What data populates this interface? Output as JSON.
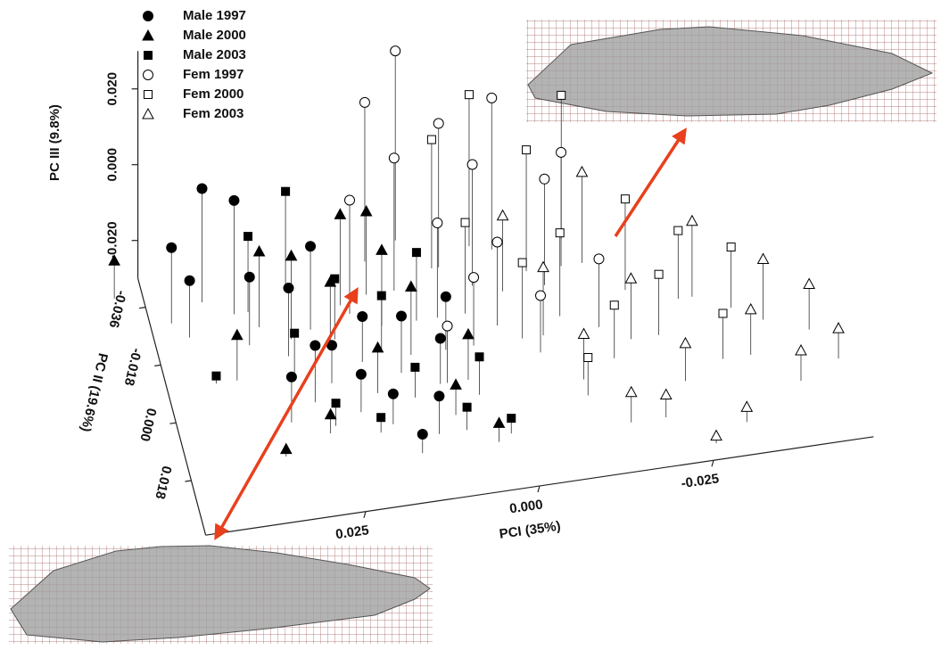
{
  "chart_data": {
    "type": "scatter3d",
    "xlabel": "PCI (35%)",
    "ylabel": "PC II (19.6%)",
    "zlabel": "PC III (9.8%)",
    "xlim": [
      -0.048,
      0.048
    ],
    "ylim": [
      -0.045,
      0.035
    ],
    "zlim": [
      -0.03,
      0.03
    ],
    "xticks": [
      0.025,
      {
        "value": 0,
        "label": "0.000"
      },
      -0.025
    ],
    "yticks": [
      -0.036,
      -0.018,
      {
        "value": 0,
        "label": "0.000"
      },
      0.018
    ],
    "zticks": [
      {
        "value": 0.02,
        "label": "0.020"
      },
      {
        "value": 0,
        "label": "0.000"
      },
      {
        "value": -0.02,
        "label": "-0.020"
      }
    ],
    "series": [
      {
        "name": "Male 1997",
        "marker": "circle",
        "filled": true,
        "color": "#000000",
        "x": [
          0.045,
          0.043,
          0.04,
          0.036,
          0.035,
          0.03,
          0.028,
          0.025,
          0.022,
          0.02,
          0.018,
          0.015,
          0.012,
          0.01,
          0.015,
          0.008,
          0.032,
          0.026
        ],
        "y": [
          -0.03,
          -0.025,
          -0.035,
          -0.03,
          -0.02,
          -0.015,
          0.0,
          -0.005,
          0.005,
          -0.01,
          0.01,
          -0.005,
          0.015,
          0.0,
          0.02,
          -0.01,
          0.005,
          -0.022
        ],
        "z": [
          -0.01,
          -0.015,
          0.0,
          0.0,
          -0.012,
          -0.012,
          -0.015,
          -0.02,
          -0.02,
          -0.018,
          -0.022,
          -0.015,
          -0.02,
          -0.018,
          -0.025,
          -0.016,
          -0.018,
          -0.008
        ]
      },
      {
        "name": "Male 2000",
        "marker": "triangle",
        "filled": true,
        "color": "#000000",
        "x": [
          0.052,
          0.038,
          0.033,
          0.029,
          0.027,
          0.024,
          0.021,
          0.019,
          0.016,
          0.013,
          0.009,
          0.006,
          0.004,
          0.034,
          0.017
        ],
        "y": [
          -0.04,
          -0.01,
          -0.025,
          -0.02,
          0.01,
          -0.015,
          -0.028,
          0.0,
          -0.02,
          -0.01,
          0.01,
          0.0,
          0.02,
          0.015,
          -0.03
        ],
        "z": [
          -0.02,
          -0.018,
          -0.01,
          -0.008,
          -0.025,
          -0.012,
          -0.006,
          -0.018,
          -0.01,
          -0.012,
          -0.022,
          -0.018,
          -0.025,
          -0.028,
          -0.008
        ]
      },
      {
        "name": "Male 2003",
        "marker": "square",
        "filled": true,
        "color": "#000000",
        "x": [
          0.041,
          0.034,
          0.03,
          0.026,
          0.023,
          0.02,
          0.017,
          0.014,
          0.011,
          0.008,
          0.005,
          0.002,
          0.028
        ],
        "y": [
          -0.01,
          -0.03,
          -0.008,
          0.008,
          -0.018,
          0.012,
          -0.012,
          0.003,
          -0.02,
          0.015,
          0.005,
          0.018,
          -0.035
        ],
        "z": [
          -0.028,
          -0.01,
          -0.018,
          -0.024,
          -0.014,
          -0.026,
          -0.015,
          -0.022,
          -0.012,
          -0.024,
          -0.02,
          -0.026,
          -0.004
        ]
      },
      {
        "name": "Fem 1997",
        "marker": "circle",
        "filled": false,
        "color": "#000000",
        "x": [
          0.02,
          0.016,
          0.013,
          0.011,
          0.008,
          0.006,
          0.004,
          0.002,
          0.0,
          -0.002,
          -0.005,
          -0.008,
          -0.011,
          -0.014,
          0.009
        ],
        "y": [
          -0.025,
          -0.04,
          -0.03,
          -0.045,
          -0.02,
          -0.035,
          -0.01,
          -0.028,
          -0.015,
          -0.038,
          -0.005,
          -0.025,
          -0.03,
          -0.01,
          0.0
        ],
        "z": [
          0.0,
          0.012,
          0.005,
          0.02,
          -0.005,
          0.008,
          -0.012,
          0.002,
          -0.008,
          0.01,
          -0.015,
          -0.002,
          0.0,
          -0.012,
          -0.015
        ]
      },
      {
        "name": "Fem 2000",
        "marker": "square",
        "filled": false,
        "color": "#000000",
        "x": [
          0.007,
          0.004,
          0.001,
          -0.003,
          -0.006,
          -0.009,
          -0.012,
          -0.015,
          -0.019,
          -0.022,
          -0.026,
          -0.03,
          -0.033,
          -0.01
        ],
        "y": [
          -0.035,
          -0.02,
          -0.04,
          -0.01,
          -0.03,
          -0.015,
          -0.038,
          0.0,
          -0.02,
          -0.005,
          -0.015,
          0.005,
          -0.01,
          0.01
        ],
        "z": [
          0.004,
          -0.006,
          0.01,
          -0.01,
          0.002,
          -0.008,
          0.008,
          -0.016,
          -0.006,
          -0.014,
          -0.012,
          -0.018,
          -0.014,
          -0.02
        ]
      },
      {
        "name": "Fem 2003",
        "marker": "triangle",
        "filled": false,
        "color": "#000000",
        "x": [
          -0.002,
          -0.006,
          -0.01,
          -0.014,
          -0.018,
          -0.02,
          -0.024,
          -0.028,
          -0.031,
          -0.034,
          -0.037,
          -0.04,
          -0.043,
          -0.046,
          -0.026,
          -0.015
        ],
        "y": [
          -0.025,
          -0.01,
          0.005,
          -0.03,
          -0.005,
          0.02,
          0.01,
          -0.015,
          0.025,
          0.005,
          -0.005,
          0.015,
          0.0,
          0.01,
          0.03,
          0.02
        ],
        "z": [
          -0.01,
          -0.012,
          -0.018,
          -0.006,
          -0.014,
          -0.024,
          -0.02,
          -0.01,
          -0.026,
          -0.018,
          -0.014,
          -0.022,
          -0.018,
          -0.022,
          -0.028,
          -0.022
        ]
      }
    ]
  }
}
